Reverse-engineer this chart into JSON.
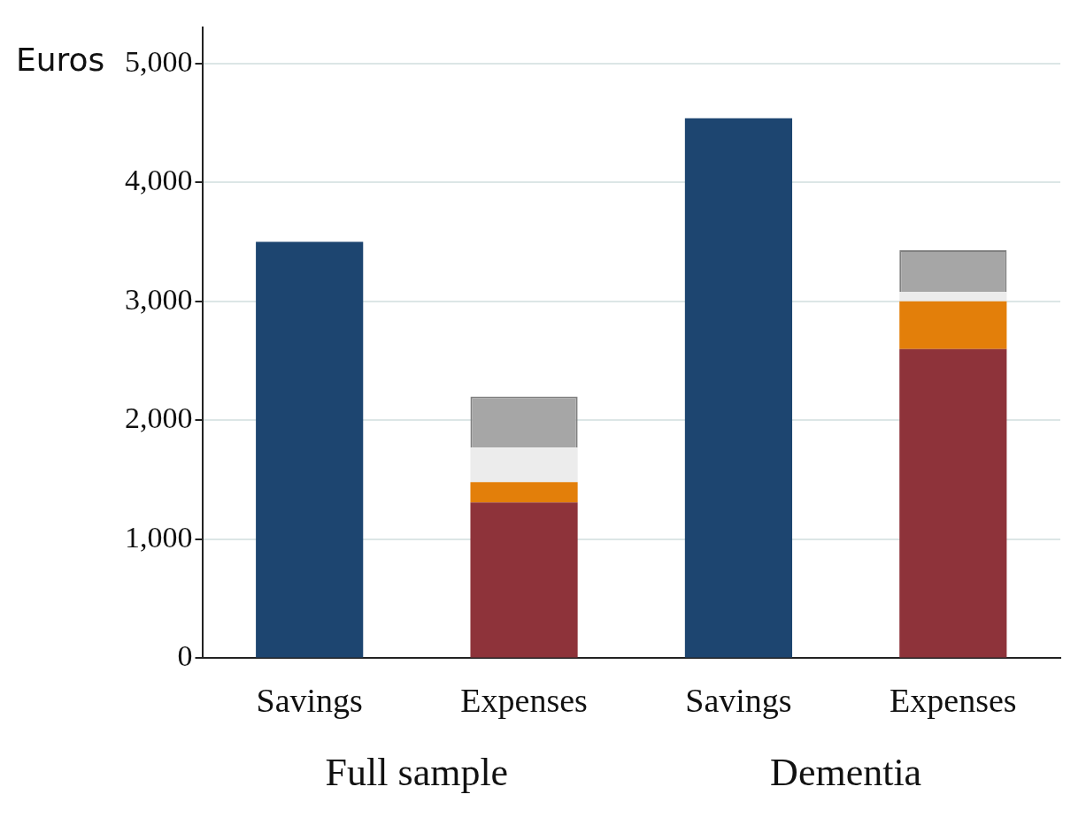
{
  "chart_data": {
    "type": "bar",
    "stacked": true,
    "ylabel": "Euros",
    "categories": [
      "Savings",
      "Expenses",
      "Savings",
      "Expenses"
    ],
    "series": [
      {
        "color": "#1d4570",
        "values": [
          3500,
          null,
          4540,
          null
        ]
      },
      {
        "color": "#8e333a",
        "values": [
          null,
          1310,
          null,
          2600
        ]
      },
      {
        "color": "#e37f0a",
        "values": [
          null,
          170,
          null,
          400
        ]
      },
      {
        "color": "#ececec",
        "values": [
          null,
          290,
          null,
          80
        ]
      },
      {
        "color": "#a6a6a6",
        "values": [
          null,
          430,
          null,
          350
        ],
        "line_style": "dashed"
      }
    ],
    "ylim": [
      0,
      5300
    ],
    "yticks": [
      0,
      {
        "value": 1000,
        "label": "1,000"
      },
      {
        "value": 2000,
        "label": "2,000"
      },
      {
        "value": 3000,
        "label": "3,000"
      },
      {
        "value": 4000,
        "label": "4,000"
      },
      {
        "value": 5000,
        "label": "5,000"
      }
    ],
    "grid": "y",
    "legend": false,
    "annotations": [
      "Full sample",
      "Dementia"
    ]
  }
}
